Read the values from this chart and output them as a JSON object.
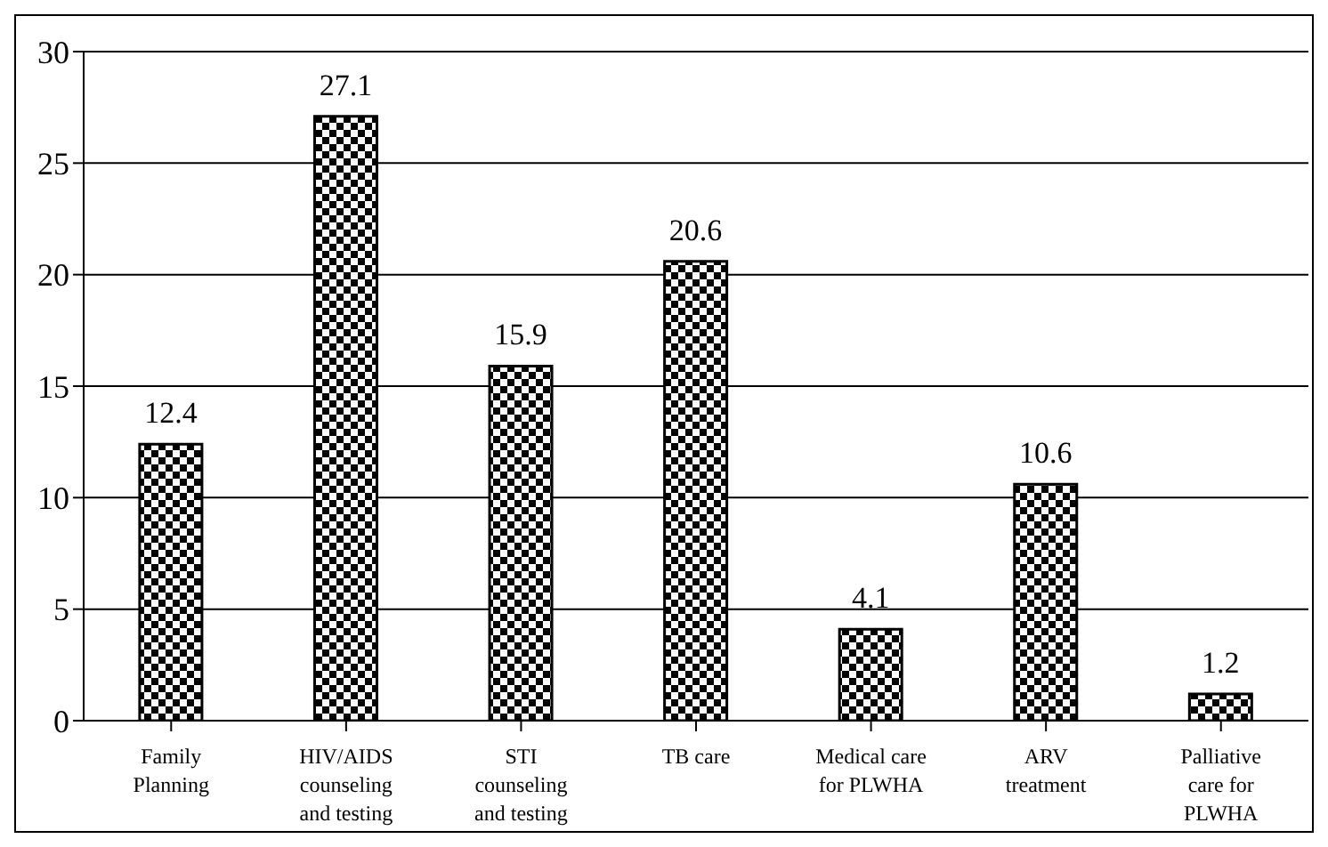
{
  "chart_data": {
    "type": "bar",
    "categories": [
      "Family Planning",
      "HIV/AIDS counseling and testing",
      "STI counseling and testing",
      "TB care",
      "Medical care for PLWHA",
      "ARV treatment",
      "Palliative care for PLWHA"
    ],
    "values": [
      12.4,
      27.1,
      15.9,
      20.6,
      4.1,
      10.6,
      1.2
    ],
    "color": "#000000",
    "ylim": [
      0,
      30
    ],
    "yticks": [
      0,
      5,
      10,
      15,
      20,
      25,
      30
    ],
    "grid": "y",
    "data_labels": true
  }
}
